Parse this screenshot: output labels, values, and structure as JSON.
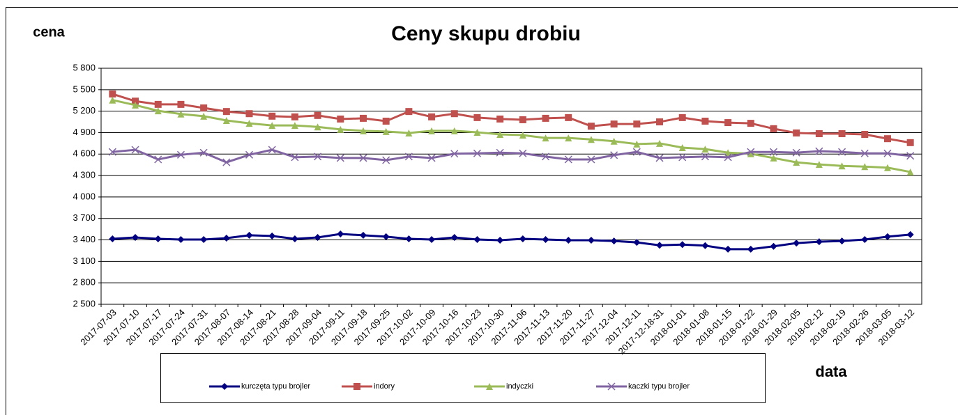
{
  "chart_data": {
    "type": "line",
    "title": "Ceny skupu drobiu",
    "y_label": "cena",
    "x_label": "data",
    "categories": [
      "2017-07-03",
      "2017-07-10",
      "2017-07-17",
      "2017-07-24",
      "2017-07-31",
      "2017-08-07",
      "2017-08-14",
      "2017-08-21",
      "2017-08-28",
      "2017-09-04",
      "2017-09-11",
      "2017-09-18",
      "2017-09-25",
      "2017-10-02",
      "2017-10-09",
      "2017-10-16",
      "2017-10-23",
      "2017-10-30",
      "2017-11-06",
      "2017-11-13",
      "2017-11-20",
      "2017-11-27",
      "2017-12-04",
      "2017-12-11",
      "2017-12-18-31",
      "2018-01-01",
      "2018-01-08",
      "2018-01-15",
      "2018-01-22",
      "2018-01-29",
      "2018-02-05",
      "2018-02-12",
      "2018-02-19",
      "2018-02-26",
      "2018-03-05",
      "2018-03-12"
    ],
    "series": [
      {
        "name": "kurczęta typu brojler",
        "color": "#000080",
        "marker": "diamond",
        "values": [
          3415,
          3435,
          3415,
          3405,
          3405,
          3425,
          3465,
          3455,
          3415,
          3435,
          3483,
          3465,
          3445,
          3415,
          3405,
          3435,
          3405,
          3395,
          3415,
          3405,
          3395,
          3395,
          3385,
          3365,
          3325,
          3335,
          3320,
          3270,
          3270,
          3310,
          3355,
          3375,
          3385,
          3405,
          3445,
          3475
        ]
      },
      {
        "name": "indory",
        "color": "#c0504d",
        "marker": "square",
        "values": [
          5440,
          5340,
          5295,
          5295,
          5245,
          5195,
          5165,
          5130,
          5120,
          5140,
          5090,
          5100,
          5060,
          5195,
          5120,
          5165,
          5110,
          5090,
          5080,
          5100,
          5110,
          4990,
          5020,
          5020,
          5050,
          5110,
          5060,
          5040,
          5030,
          4955,
          4895,
          4885,
          4885,
          4875,
          4815,
          4760
        ]
      },
      {
        "name": "indyczki",
        "color": "#9bbb59",
        "marker": "triangle",
        "values": [
          5355,
          5285,
          5205,
          5160,
          5130,
          5070,
          5030,
          5000,
          5000,
          4980,
          4945,
          4925,
          4915,
          4895,
          4925,
          4925,
          4905,
          4875,
          4865,
          4825,
          4825,
          4805,
          4780,
          4740,
          4750,
          4690,
          4670,
          4620,
          4605,
          4545,
          4485,
          4455,
          4435,
          4425,
          4410,
          4350
        ]
      },
      {
        "name": "kaczki typu brojler",
        "color": "#8064a2",
        "marker": "x",
        "values": [
          4630,
          4660,
          4525,
          4590,
          4620,
          4485,
          4590,
          4660,
          4555,
          4565,
          4545,
          4545,
          4515,
          4565,
          4545,
          4605,
          4610,
          4620,
          4610,
          4565,
          4525,
          4525,
          4585,
          4630,
          4545,
          4555,
          4565,
          4555,
          4630,
          4630,
          4620,
          4640,
          4630,
          4610,
          4610,
          4575
        ]
      }
    ],
    "ylim": [
      2500,
      5800
    ],
    "yticks": [
      {
        "value": 2500,
        "label": "2 500"
      },
      {
        "value": 2800,
        "label": "2 800"
      },
      {
        "value": 3100,
        "label": "3 100"
      },
      {
        "value": 3400,
        "label": "3 400"
      },
      {
        "value": 3700,
        "label": "3 700"
      },
      {
        "value": 4000,
        "label": "4 000"
      },
      {
        "value": 4300,
        "label": "4 300"
      },
      {
        "value": 4600,
        "label": "4 600"
      },
      {
        "value": 4900,
        "label": "4 900"
      },
      {
        "value": 5200,
        "label": "5 200"
      },
      {
        "value": 5500,
        "label": "5 500"
      },
      {
        "value": 5800,
        "label": "5 800"
      }
    ],
    "grid": true,
    "legend": "bottom"
  }
}
